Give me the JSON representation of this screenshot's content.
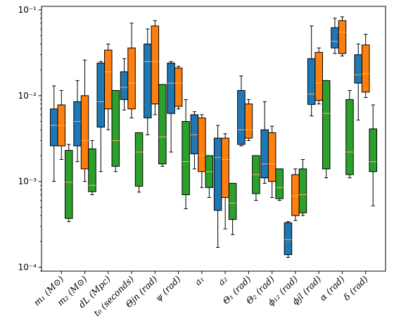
{
  "chart_data": {
    "type": "box",
    "yscale": "log",
    "ylim": [
      9e-05,
      0.11
    ],
    "yticks": [
      {
        "value": 0.0001,
        "label": "10⁻⁴"
      },
      {
        "value": 0.001,
        "label": "10⁻³"
      },
      {
        "value": 0.01,
        "label": "10⁻²"
      },
      {
        "value": 0.1,
        "label": "10⁻¹"
      }
    ],
    "categories": [
      "m₁ (M⊙)",
      "m₂ (M⊙)",
      "dL (Mpc)",
      "t₀ (seconds)",
      "Θjn (rad)",
      "ψ (rad)",
      "a₁",
      "a₂",
      "Θ₁ (rad)",
      "Θ₂ (rad)",
      "ϕ₁₂ (rad)",
      "ϕjl (rad)",
      "α (rad)",
      "δ (rad)"
    ],
    "series": [
      {
        "color": "#1f77b4",
        "boxes": [
          {
            "whislo": 0.001,
            "q1": 0.0026,
            "med": 0.0045,
            "q3": 0.007,
            "whishi": 0.013
          },
          {
            "whislo": 0.0017,
            "q1": 0.0026,
            "med": 0.005,
            "q3": 0.0085,
            "whishi": 0.015
          },
          {
            "whislo": 0.0013,
            "q1": 0.0043,
            "med": 0.0085,
            "q3": 0.024,
            "whishi": 0.025
          },
          {
            "whislo": 0.0068,
            "q1": 0.009,
            "med": 0.0125,
            "q3": 0.019,
            "whishi": 0.027
          },
          {
            "whislo": 0.0035,
            "q1": 0.0055,
            "med": 0.025,
            "q3": 0.04,
            "whishi": 0.06
          },
          {
            "whislo": 0.0022,
            "q1": 0.0062,
            "med": 0.014,
            "q3": 0.024,
            "whishi": 0.025
          },
          {
            "whislo": 0.0014,
            "q1": 0.0021,
            "med": 0.0035,
            "q3": 0.006,
            "whishi": 0.0065
          },
          {
            "whislo": 0.00017,
            "q1": 0.00046,
            "med": 0.0019,
            "q3": 0.0032,
            "whishi": 0.0045
          },
          {
            "whislo": 0.0026,
            "q1": 0.0027,
            "med": 0.004,
            "q3": 0.0115,
            "whishi": 0.017
          },
          {
            "whislo": 0.00095,
            "q1": 0.0011,
            "med": 0.0016,
            "q3": 0.004,
            "whishi": 0.0085
          },
          {
            "whislo": 0.00013,
            "q1": 0.00014,
            "med": 0.00021,
            "q3": 0.00033,
            "whishi": 0.00034
          },
          {
            "whislo": 0.0058,
            "q1": 0.0079,
            "med": 0.0105,
            "q3": 0.027,
            "whishi": 0.065
          },
          {
            "whislo": 0.031,
            "q1": 0.036,
            "med": 0.043,
            "q3": 0.062,
            "whishi": 0.08
          },
          {
            "whislo": 0.0052,
            "q1": 0.014,
            "med": 0.0175,
            "q3": 0.03,
            "whishi": 0.04
          }
        ]
      },
      {
        "color": "#ff7f0e",
        "boxes": [
          {
            "whislo": 0.0018,
            "q1": 0.0026,
            "med": 0.0045,
            "q3": 0.0078,
            "whishi": 0.0115
          },
          {
            "whislo": 0.001,
            "q1": 0.0014,
            "med": 0.003,
            "q3": 0.01,
            "whishi": 0.026
          },
          {
            "whislo": 0.004,
            "q1": 0.007,
            "med": 0.019,
            "q3": 0.034,
            "whishi": 0.04
          },
          {
            "whislo": 0.0055,
            "q1": 0.007,
            "med": 0.014,
            "q3": 0.036,
            "whishi": 0.07
          },
          {
            "whislo": 0.006,
            "q1": 0.008,
            "med": 0.025,
            "q3": 0.065,
            "whishi": 0.075
          },
          {
            "whislo": 0.007,
            "q1": 0.0075,
            "med": 0.014,
            "q3": 0.021,
            "whishi": 0.022
          },
          {
            "whislo": 0.00085,
            "q1": 0.0013,
            "med": 0.002,
            "q3": 0.0055,
            "whishi": 0.006
          },
          {
            "whislo": 0.00028,
            "q1": 0.00065,
            "med": 0.0018,
            "q3": 0.0032,
            "whishi": 0.0036
          },
          {
            "whislo": 0.003,
            "q1": 0.0032,
            "med": 0.004,
            "q3": 0.008,
            "whishi": 0.009
          },
          {
            "whislo": 0.00065,
            "q1": 0.001,
            "med": 0.0016,
            "q3": 0.0037,
            "whishi": 0.0044
          },
          {
            "whislo": 0.00035,
            "q1": 0.0004,
            "med": 0.00068,
            "q3": 0.0012,
            "whishi": 0.0014
          },
          {
            "whislo": 0.008,
            "q1": 0.0088,
            "med": 0.014,
            "q3": 0.032,
            "whishi": 0.036
          },
          {
            "whislo": 0.029,
            "q1": 0.031,
            "med": 0.055,
            "q3": 0.075,
            "whishi": 0.083
          },
          {
            "whislo": 0.0095,
            "q1": 0.011,
            "med": 0.018,
            "q3": 0.039,
            "whishi": 0.052
          }
        ]
      },
      {
        "color": "#2ca02c",
        "boxes": [
          {
            "whislo": 0.00034,
            "q1": 0.00037,
            "med": 0.00098,
            "q3": 0.0023,
            "whishi": 0.0027
          },
          {
            "whislo": 0.0007,
            "q1": 0.00076,
            "med": 0.0009,
            "q3": 0.0024,
            "whishi": 0.003
          },
          {
            "whislo": 0.0013,
            "q1": 0.0015,
            "med": 0.003,
            "q3": 0.0115,
            "whishi": 0.0115
          },
          {
            "whislo": 0.00075,
            "q1": 0.00088,
            "med": 0.0022,
            "q3": 0.0037,
            "whishi": 0.0037
          },
          {
            "whislo": 0.0015,
            "q1": 0.0016,
            "med": 0.0033,
            "q3": 0.0135,
            "whishi": 0.0135
          },
          {
            "whislo": 0.00048,
            "q1": 0.0007,
            "med": 0.0017,
            "q3": 0.005,
            "whishi": 0.009
          },
          {
            "whislo": 0.00065,
            "q1": 0.00085,
            "med": 0.0013,
            "q3": 0.002,
            "whishi": 0.002
          },
          {
            "whislo": 0.00024,
            "q1": 0.00036,
            "med": 0.00056,
            "q3": 0.00095,
            "whishi": 0.00095
          },
          {
            "whislo": 0.0006,
            "q1": 0.00072,
            "med": 0.0012,
            "q3": 0.002,
            "whishi": 0.002
          },
          {
            "whislo": 0.0006,
            "q1": 0.00063,
            "med": 0.00085,
            "q3": 0.0014,
            "whishi": 0.0014
          },
          {
            "whislo": 0.0004,
            "q1": 0.00043,
            "med": 0.0007,
            "q3": 0.0014,
            "whishi": 0.0018
          },
          {
            "whislo": 0.0011,
            "q1": 0.0014,
            "med": 0.0062,
            "q3": 0.015,
            "whishi": 0.015
          },
          {
            "whislo": 0.0011,
            "q1": 0.0012,
            "med": 0.0022,
            "q3": 0.009,
            "whishi": 0.0115
          },
          {
            "whislo": 0.00052,
            "q1": 0.0013,
            "med": 0.0017,
            "q3": 0.0041,
            "whishi": 0.0078
          }
        ]
      }
    ]
  }
}
